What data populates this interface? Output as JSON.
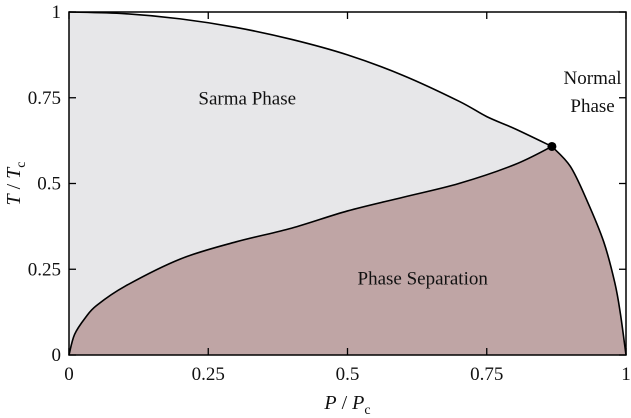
{
  "chart_data": {
    "type": "area",
    "title": "",
    "xlabel": {
      "main": "P",
      "sep": " / ",
      "denom": "P",
      "sub": "c"
    },
    "ylabel": {
      "main": "T",
      "sep": " / ",
      "denom": "T",
      "sub": "c"
    },
    "xlim": [
      0,
      1
    ],
    "ylim": [
      0,
      1
    ],
    "x_ticks": [
      0,
      0.25,
      0.5,
      0.75,
      1
    ],
    "y_ticks": [
      0,
      0.25,
      0.5,
      0.75,
      1
    ],
    "x_tick_labels": [
      "0",
      "0.25",
      "0.5",
      "0.75",
      "1"
    ],
    "y_tick_labels": [
      "0",
      "0.25",
      "0.5",
      "0.75",
      "1"
    ],
    "grid": false,
    "tricritical_point": {
      "x": 0.867,
      "y": 0.608
    },
    "series": [
      {
        "role": "sarma-boundary",
        "x": [
          0,
          0.1,
          0.2,
          0.3,
          0.4,
          0.5,
          0.6,
          0.7,
          0.75,
          0.8,
          0.867
        ],
        "y": [
          1.0,
          0.995,
          0.98,
          0.955,
          0.92,
          0.875,
          0.815,
          0.74,
          0.695,
          0.66,
          0.608
        ]
      },
      {
        "role": "separation-boundary",
        "x": [
          0,
          0.01,
          0.03,
          0.05,
          0.1,
          0.2,
          0.3,
          0.4,
          0.5,
          0.6,
          0.7,
          0.8,
          0.867
        ],
        "y": [
          0,
          0.06,
          0.11,
          0.145,
          0.2,
          0.28,
          0.33,
          0.37,
          0.42,
          0.46,
          0.5,
          0.555,
          0.608
        ]
      },
      {
        "role": "normal-boundary",
        "x": [
          0.867,
          0.9,
          0.93,
          0.96,
          0.98,
          0.99,
          1.0
        ],
        "y": [
          0.608,
          0.55,
          0.45,
          0.33,
          0.21,
          0.12,
          0
        ]
      }
    ],
    "regions": [
      {
        "label": "Sarma Phase",
        "at": [
          0.32,
          0.73
        ],
        "fill": "#e7e7e9"
      },
      {
        "label": "Phase Separation",
        "at": [
          0.635,
          0.205
        ],
        "fill": "#bfa5a5"
      },
      {
        "label_lines": [
          "Normal",
          "Phase"
        ],
        "at": [
          0.94,
          0.79
        ],
        "fill": "#ffffff"
      }
    ],
    "colors": {
      "line": "#000000",
      "sarma": "#e7e7e9",
      "separation": "#bfa5a5"
    }
  }
}
